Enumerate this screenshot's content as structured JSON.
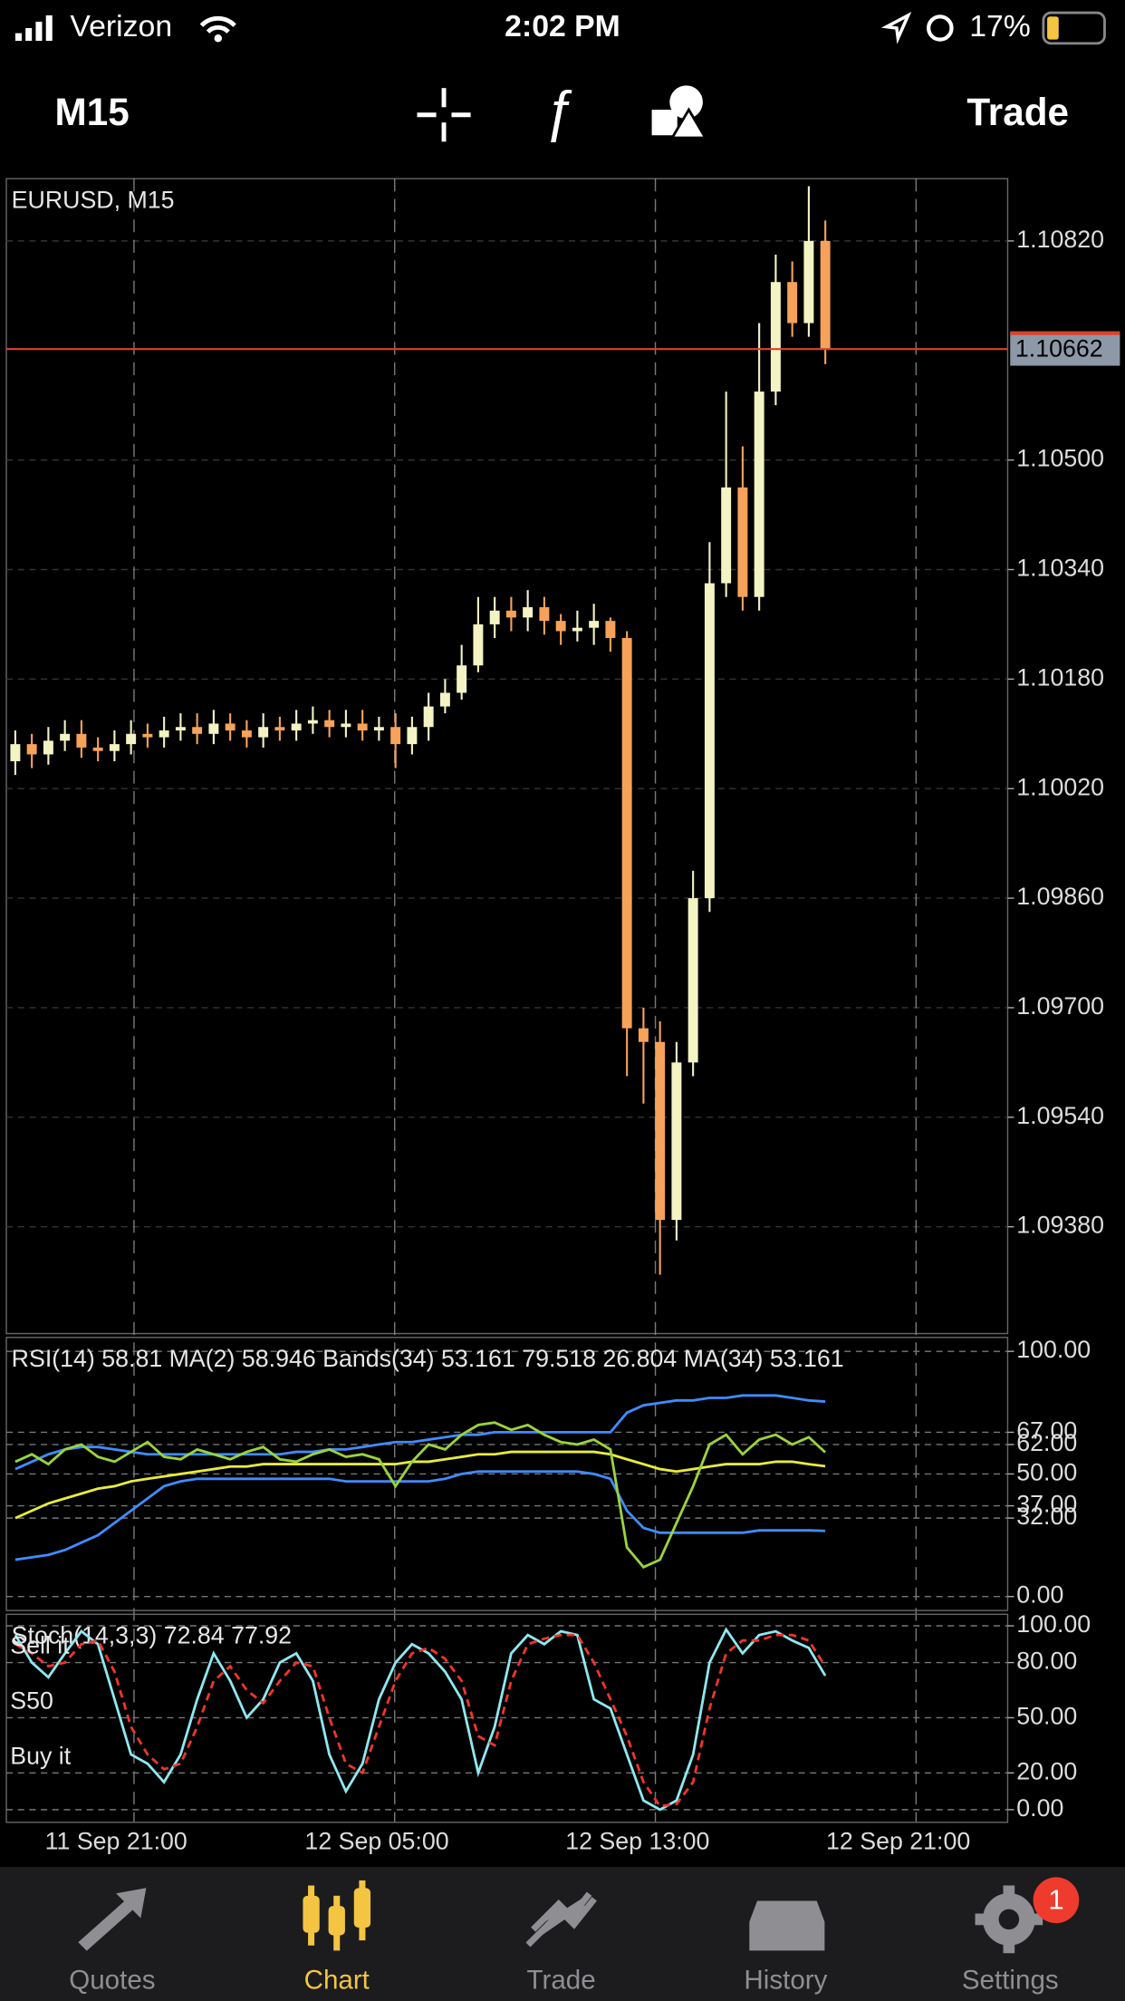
{
  "status_bar": {
    "carrier": "Verizon",
    "time": "2:02 PM",
    "battery": "17%"
  },
  "toolbar": {
    "timeframe": "M15",
    "trade": "Trade"
  },
  "chart_data": [
    {
      "type": "candlestick",
      "title": "EURUSD, M15",
      "xlim": [
        -0.54,
        60.03
      ],
      "xticks": [
        {
          "value": 7.18,
          "label": "11 Sep 21:00"
        },
        {
          "value": 22.95,
          "label": "12 Sep 05:00"
        },
        {
          "value": 38.72,
          "label": "12 Sep 13:00"
        },
        {
          "value": 54.49,
          "label": "12 Sep 21:00"
        }
      ],
      "ylim": [
        1.09224,
        1.10911
      ],
      "yticks": [
        {
          "value": 1.1082,
          "label": "1.10820"
        },
        {
          "value": 1.105,
          "label": "1.10500"
        },
        {
          "value": 1.1034,
          "label": "1.10340"
        },
        {
          "value": 1.1018,
          "label": "1.10180"
        },
        {
          "value": 1.1002,
          "label": "1.10020"
        },
        {
          "value": 1.0986,
          "label": "1.09860"
        },
        {
          "value": 1.097,
          "label": "1.09700"
        },
        {
          "value": 1.0954,
          "label": "1.09540"
        },
        {
          "value": 1.0938,
          "label": "1.09380"
        }
      ],
      "grid": true,
      "up_color": "#f3f3c4",
      "down_color": "#f6a25a",
      "last_price": {
        "value": 1.10662,
        "label": "1.10662"
      },
      "last_price_color": "#d9432f",
      "open": [
        1.1006,
        1.10085,
        1.1007,
        1.1009,
        1.101,
        1.1008,
        1.10075,
        1.10085,
        1.101,
        1.10095,
        1.10105,
        1.1011,
        1.101,
        1.10115,
        1.10105,
        1.10095,
        1.1011,
        1.10105,
        1.10115,
        1.1012,
        1.1011,
        1.10115,
        1.10105,
        1.1011,
        1.10085,
        1.1011,
        1.1014,
        1.1016,
        1.102,
        1.1026,
        1.1028,
        1.1027,
        1.10285,
        1.10265,
        1.1025,
        1.10255,
        1.10265,
        1.1024,
        1.0967,
        1.0965,
        1.0939,
        1.0962,
        1.0986,
        1.1032,
        1.1046,
        1.103,
        1.106,
        1.1076,
        1.107,
        1.1082
      ],
      "high": [
        1.10105,
        1.101,
        1.1011,
        1.1012,
        1.1012,
        1.10095,
        1.10105,
        1.1012,
        1.10115,
        1.10125,
        1.1013,
        1.1013,
        1.10135,
        1.1013,
        1.1012,
        1.1013,
        1.10125,
        1.10135,
        1.1014,
        1.10135,
        1.10135,
        1.10135,
        1.10125,
        1.1013,
        1.10125,
        1.1016,
        1.1018,
        1.1023,
        1.103,
        1.103,
        1.103,
        1.1031,
        1.103,
        1.10275,
        1.1028,
        1.1029,
        1.1027,
        1.1025,
        1.097,
        1.0968,
        1.0965,
        1.099,
        1.1038,
        1.106,
        1.1052,
        1.107,
        1.108,
        1.1079,
        1.109,
        1.1085
      ],
      "low": [
        1.1004,
        1.1005,
        1.10055,
        1.10075,
        1.10065,
        1.1006,
        1.1006,
        1.1007,
        1.1008,
        1.1008,
        1.1009,
        1.10085,
        1.10085,
        1.1009,
        1.1008,
        1.1008,
        1.1009,
        1.1009,
        1.101,
        1.10095,
        1.10095,
        1.1009,
        1.1009,
        1.1005,
        1.1007,
        1.1009,
        1.1013,
        1.1015,
        1.1019,
        1.1024,
        1.1025,
        1.1025,
        1.10245,
        1.1023,
        1.10235,
        1.1023,
        1.1022,
        1.096,
        1.0956,
        1.0931,
        1.0936,
        1.096,
        1.0984,
        1.103,
        1.1028,
        1.1028,
        1.1058,
        1.1068,
        1.1068,
        1.1064
      ],
      "close": [
        1.10085,
        1.1007,
        1.1009,
        1.101,
        1.1008,
        1.10075,
        1.10085,
        1.101,
        1.10095,
        1.10105,
        1.1011,
        1.101,
        1.10115,
        1.10105,
        1.10095,
        1.1011,
        1.10105,
        1.10115,
        1.1012,
        1.1011,
        1.10115,
        1.10105,
        1.1011,
        1.10085,
        1.1011,
        1.1014,
        1.1016,
        1.102,
        1.1026,
        1.1028,
        1.1027,
        1.10285,
        1.10265,
        1.1025,
        1.10255,
        1.10265,
        1.1024,
        1.0967,
        1.0965,
        1.0939,
        1.0962,
        1.0986,
        1.1032,
        1.1046,
        1.103,
        1.106,
        1.1076,
        1.107,
        1.1082,
        1.10662
      ]
    },
    {
      "type": "line",
      "title": "RSI(14) 58.81 MA(2) 58.946 Bands(34) 53.161 79.518 26.804 MA(34) 53.161",
      "xlim": [
        -0.54,
        60.03
      ],
      "ylim": [
        -5.7,
        105.7
      ],
      "yticks": [
        {
          "value": 100,
          "label": "100.00"
        },
        {
          "value": 67,
          "label": "67.00"
        },
        {
          "value": 62,
          "label": "62.00"
        },
        {
          "value": 50,
          "label": "50.00"
        },
        {
          "value": 37,
          "label": "37.00"
        },
        {
          "value": 32,
          "label": "32.00"
        },
        {
          "value": 0,
          "label": "0.00"
        }
      ],
      "grid": true,
      "series": [
        {
          "color": "#3f8cff",
          "values": [
            52,
            55,
            58,
            60,
            61,
            61,
            60,
            59,
            58,
            58,
            58,
            58,
            58,
            58,
            58,
            58,
            58,
            59,
            59,
            60,
            60,
            61,
            62,
            63,
            63,
            64,
            65,
            66,
            66,
            67,
            67,
            67,
            67,
            67,
            67,
            67,
            67,
            75,
            78,
            79,
            80,
            80,
            81,
            81,
            82,
            82,
            82,
            81,
            80,
            79.518
          ]
        },
        {
          "color": "#3f8cff",
          "values": [
            15,
            16,
            17,
            19,
            22,
            25,
            30,
            35,
            40,
            45,
            47,
            48,
            48,
            48,
            48,
            48,
            48,
            48,
            48,
            48,
            47,
            47,
            47,
            47,
            47,
            47,
            48,
            50,
            51,
            51,
            51,
            51,
            51,
            51,
            51,
            50,
            48,
            35,
            28,
            26,
            26,
            26,
            26,
            26,
            26,
            27,
            27,
            27,
            27,
            26.804
          ]
        },
        {
          "color": "#e8ec3c",
          "values": [
            32,
            35,
            38,
            40,
            42,
            44,
            45,
            47,
            48,
            49,
            50,
            51,
            52,
            53,
            53,
            54,
            54,
            54,
            54,
            54,
            54,
            54,
            54,
            54,
            55,
            55,
            56,
            57,
            58,
            58,
            59,
            59,
            59,
            59,
            59,
            59,
            58,
            56,
            54,
            52,
            51,
            52,
            53,
            54,
            54,
            54,
            55,
            55,
            54,
            53.161
          ]
        },
        {
          "color": "#9ad43a",
          "values": [
            55,
            58,
            54,
            60,
            62,
            57,
            55,
            59,
            63,
            57,
            56,
            60,
            58,
            56,
            59,
            61,
            56,
            55,
            58,
            60,
            57,
            58,
            56,
            45,
            55,
            62,
            60,
            66,
            70,
            71,
            68,
            70,
            66,
            63,
            62,
            64,
            60,
            20,
            12,
            15,
            30,
            45,
            62,
            66,
            58,
            64,
            66,
            62,
            65,
            58.81
          ]
        }
      ]
    },
    {
      "type": "line",
      "title": "Stoch(14,3,3) 72.84 77.92",
      "annotations": [
        "Sell it",
        "S50",
        "Buy it"
      ],
      "xlim": [
        -0.54,
        60.03
      ],
      "ylim": [
        -6.9,
        106.25
      ],
      "yticks": [
        {
          "value": 100,
          "label": "100.00"
        },
        {
          "value": 80,
          "label": "80.00"
        },
        {
          "value": 50,
          "label": "50.00"
        },
        {
          "value": 20,
          "label": "20.00"
        },
        {
          "value": 0,
          "label": "0.00"
        }
      ],
      "grid": true,
      "series": [
        {
          "color": "#8ee8f0",
          "values": [
            95,
            80,
            72,
            85,
            97,
            90,
            60,
            30,
            25,
            15,
            30,
            60,
            85,
            70,
            50,
            60,
            80,
            85,
            70,
            30,
            10,
            25,
            60,
            80,
            90,
            85,
            75,
            60,
            20,
            45,
            85,
            95,
            90,
            97,
            95,
            60,
            55,
            30,
            5,
            0,
            5,
            30,
            80,
            98,
            85,
            95,
            97,
            92,
            88,
            72.84
          ]
        },
        {
          "color": "#f0342a",
          "dashed": true,
          "values": [
            90,
            85,
            78,
            80,
            90,
            92,
            75,
            45,
            30,
            22,
            25,
            45,
            70,
            78,
            65,
            58,
            70,
            80,
            78,
            50,
            25,
            20,
            45,
            70,
            85,
            88,
            82,
            70,
            40,
            35,
            70,
            90,
            93,
            95,
            95,
            80,
            60,
            40,
            15,
            2,
            3,
            15,
            55,
            85,
            92,
            92,
            95,
            95,
            92,
            77.92
          ]
        }
      ]
    }
  ],
  "tab_bar": {
    "tabs": [
      "Quotes",
      "Chart",
      "Trade",
      "History",
      "Settings"
    ],
    "active": 1,
    "active_color": "#f4c542",
    "badge": 1
  }
}
